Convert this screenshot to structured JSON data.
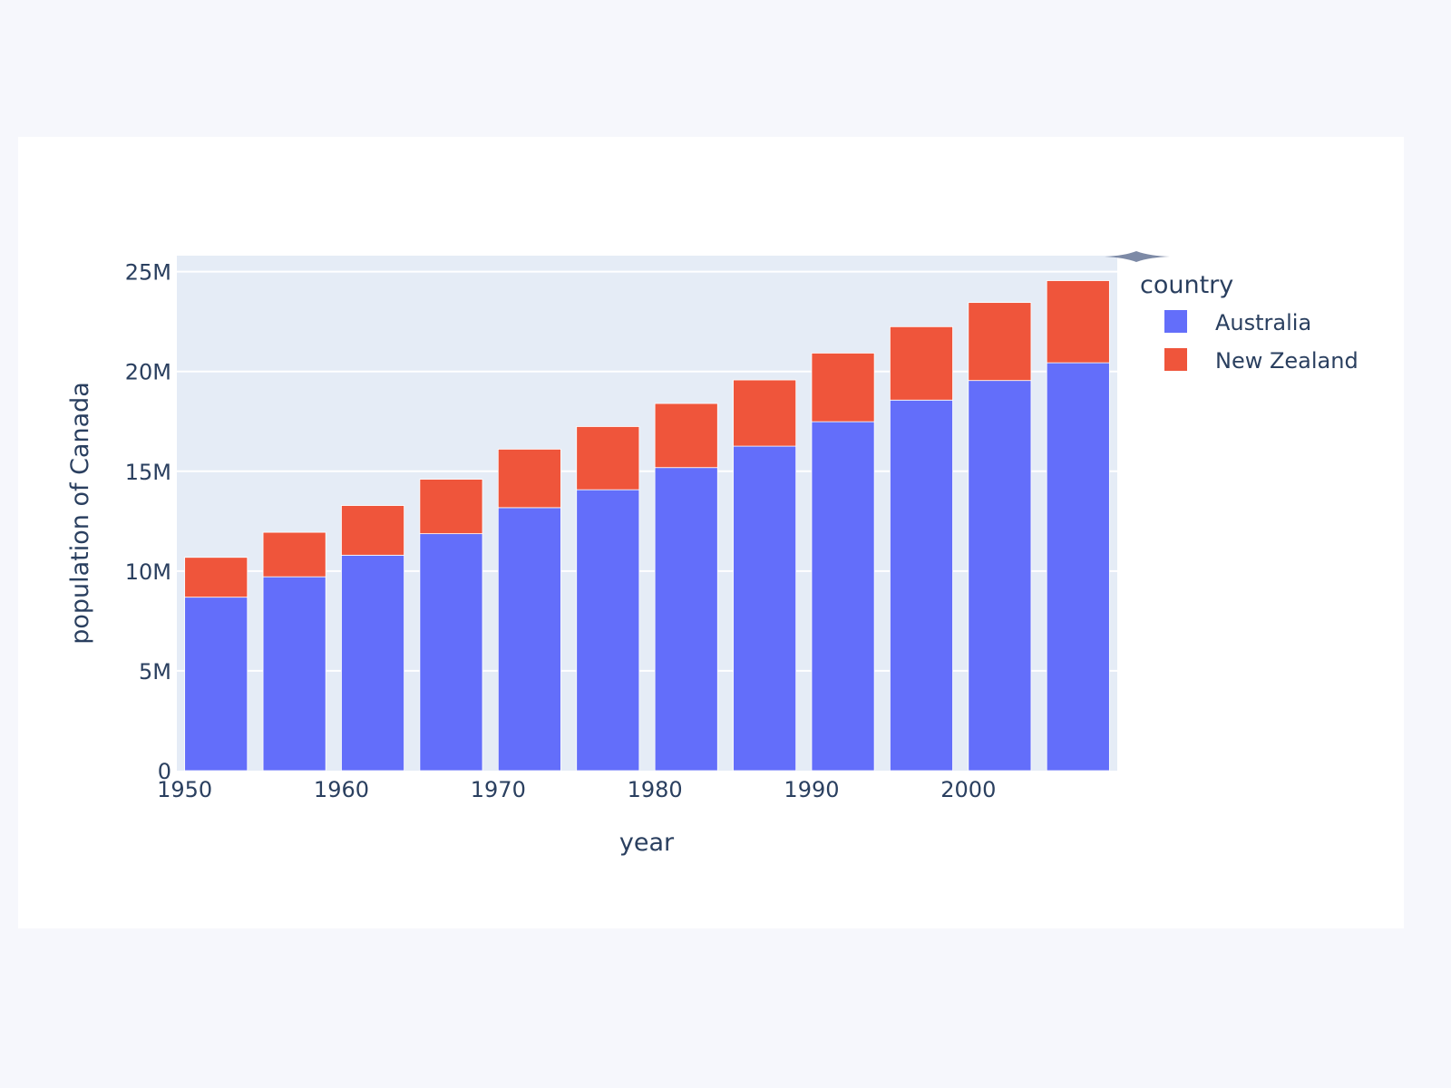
{
  "chart_data": {
    "type": "bar",
    "barmode": "stack",
    "x": [
      1952,
      1957,
      1962,
      1967,
      1972,
      1977,
      1982,
      1987,
      1992,
      1997,
      2002,
      2007
    ],
    "series": [
      {
        "name": "Australia",
        "color": "#636efa",
        "values": [
          8691212,
          9712569,
          10794968,
          11872264,
          13177000,
          14074100,
          15184200,
          16257249,
          17481977,
          18565243,
          19546792,
          20434176
        ]
      },
      {
        "name": "New Zealand",
        "color": "#ef553b",
        "values": [
          1994794,
          2229407,
          2488550,
          2728150,
          2929100,
          3164900,
          3210650,
          3317166,
          3437674,
          3676187,
          3908037,
          4115771
        ]
      }
    ],
    "xlabel": "year",
    "ylabel": "population of Canada",
    "xlim": [
      1949.5,
      2009.5
    ],
    "ylim": [
      0,
      25800000
    ],
    "xticks": [
      1950,
      1960,
      1970,
      1980,
      1990,
      2000
    ],
    "xtick_labels": [
      "1950",
      "1960",
      "1970",
      "1980",
      "1990",
      "2000"
    ],
    "yticks": [
      0,
      5000000,
      10000000,
      15000000,
      20000000,
      25000000
    ],
    "ytick_labels": [
      "0",
      "5M",
      "10M",
      "15M",
      "20M",
      "25M"
    ],
    "grid": true,
    "legend_title": "country",
    "legend_placement": "right",
    "plot_bg": "#e5ecf6"
  }
}
